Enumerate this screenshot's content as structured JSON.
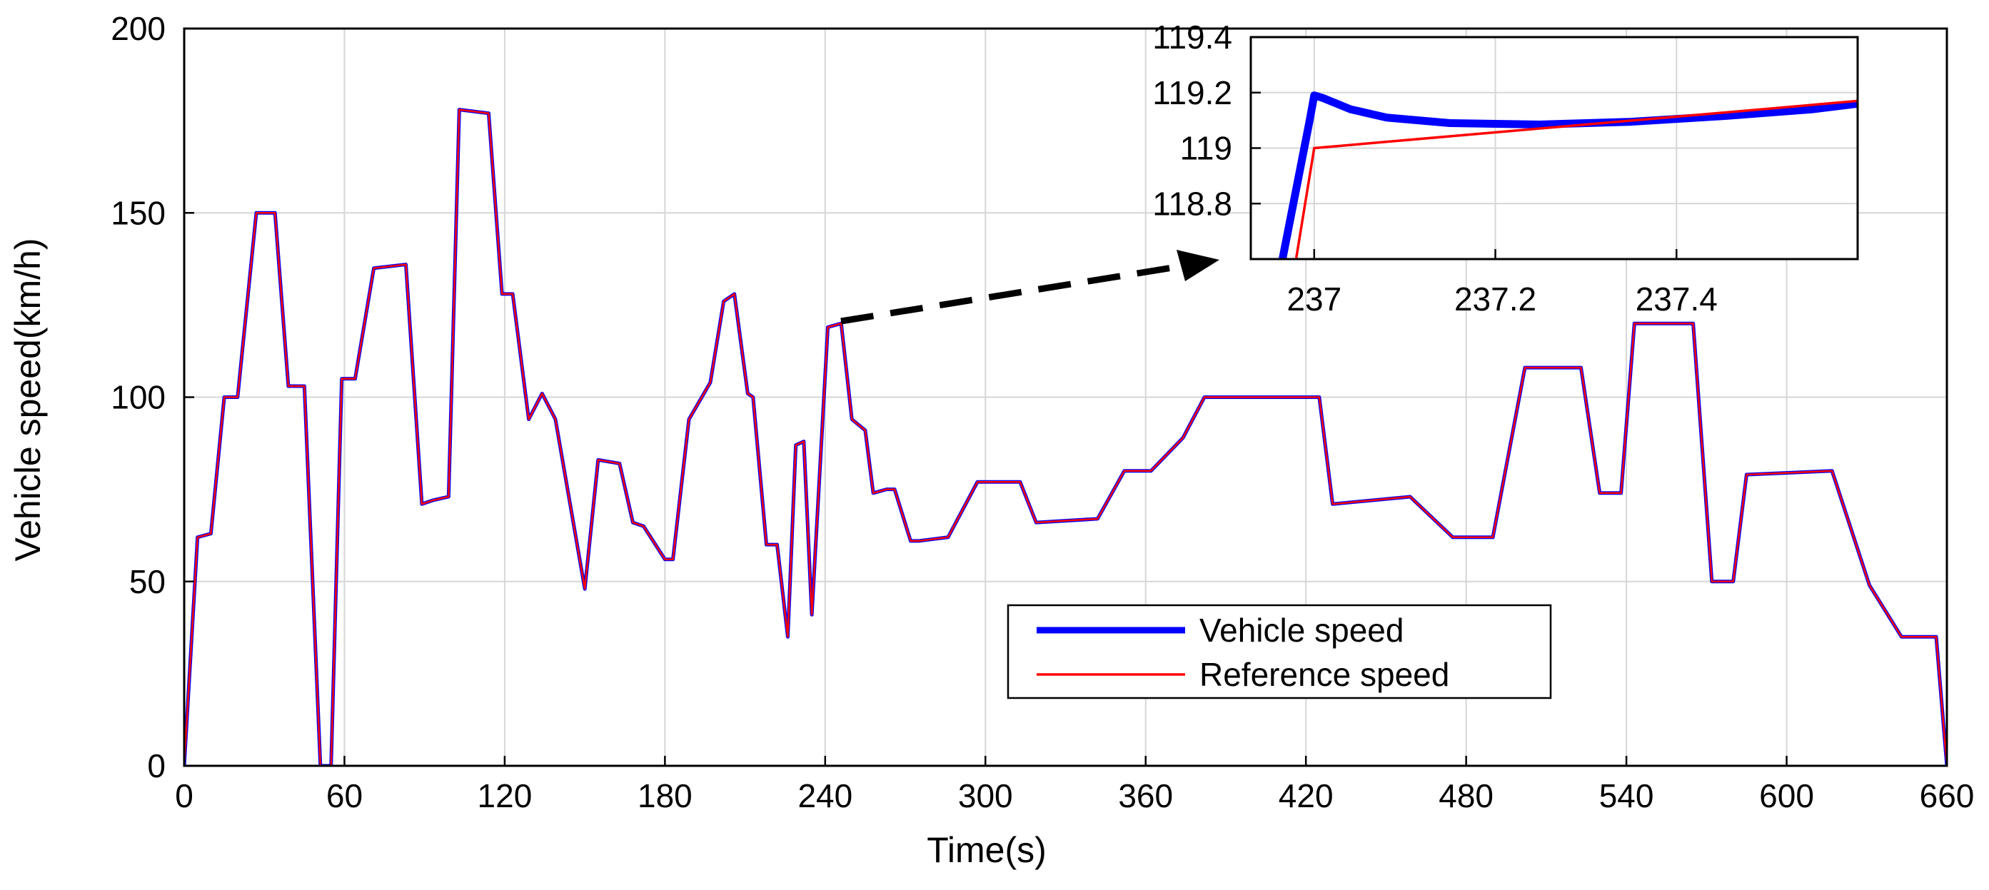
{
  "chart_data": [
    {
      "type": "line",
      "title": "",
      "xlabel": "Time(s)",
      "ylabel": "Vehicle speed(km/h)",
      "xlim": [
        0,
        660
      ],
      "ylim": [
        0,
        200
      ],
      "xticks": [
        0,
        60,
        120,
        180,
        240,
        300,
        360,
        420,
        480,
        540,
        600,
        660
      ],
      "yticks": [
        0,
        50,
        100,
        150,
        200
      ],
      "grid": true,
      "legend_position": "lower-right",
      "series": [
        {
          "name": "Vehicle speed",
          "color": "#0000ff",
          "points": [
            [
              0,
              0
            ],
            [
              5,
              62
            ],
            [
              10,
              63
            ],
            [
              15,
              100
            ],
            [
              20,
              100
            ],
            [
              27,
              150
            ],
            [
              34,
              150
            ],
            [
              39,
              103
            ],
            [
              45,
              103
            ],
            [
              51,
              0
            ],
            [
              55,
              0
            ],
            [
              59,
              105
            ],
            [
              64,
              105
            ],
            [
              71,
              135
            ],
            [
              83,
              136
            ],
            [
              89,
              71
            ],
            [
              93,
              72
            ],
            [
              99,
              73
            ],
            [
              103,
              178
            ],
            [
              114,
              177
            ],
            [
              119,
              128
            ],
            [
              123,
              128
            ],
            [
              129,
              94
            ],
            [
              134,
              101
            ],
            [
              139,
              94
            ],
            [
              150,
              48
            ],
            [
              155,
              83
            ],
            [
              163,
              82
            ],
            [
              168,
              66
            ],
            [
              172,
              65
            ],
            [
              180,
              56
            ],
            [
              183,
              56
            ],
            [
              189,
              94
            ],
            [
              197,
              104
            ],
            [
              202,
              126
            ],
            [
              206,
              128
            ],
            [
              211,
              101
            ],
            [
              213,
              100
            ],
            [
              218,
              60
            ],
            [
              222,
              60
            ],
            [
              226,
              35
            ],
            [
              229,
              87
            ],
            [
              232,
              88
            ],
            [
              235,
              41
            ],
            [
              241,
              119
            ],
            [
              246,
              120
            ],
            [
              250,
              94
            ],
            [
              255,
              91
            ],
            [
              258,
              74
            ],
            [
              263,
              75
            ],
            [
              266,
              75
            ],
            [
              272,
              61
            ],
            [
              275,
              61
            ],
            [
              286,
              62
            ],
            [
              297,
              77
            ],
            [
              313,
              77
            ],
            [
              319,
              66
            ],
            [
              342,
              67
            ],
            [
              352,
              80
            ],
            [
              362,
              80
            ],
            [
              374,
              89
            ],
            [
              382,
              100
            ],
            [
              425,
              100
            ],
            [
              430,
              71
            ],
            [
              459,
              73
            ],
            [
              475,
              62
            ],
            [
              490,
              62
            ],
            [
              502,
              108
            ],
            [
              523,
              108
            ],
            [
              530,
              74
            ],
            [
              538,
              74
            ],
            [
              543,
              120
            ],
            [
              565,
              120
            ],
            [
              572,
              50
            ],
            [
              580,
              50
            ],
            [
              585,
              79
            ],
            [
              617,
              80
            ],
            [
              631,
              49
            ],
            [
              643,
              35
            ],
            [
              656,
              35
            ],
            [
              660,
              0
            ]
          ]
        },
        {
          "name": "Reference speed",
          "color": "#ff0000",
          "points": [
            [
              0,
              0
            ],
            [
              5,
              62
            ],
            [
              10,
              63
            ],
            [
              15,
              100
            ],
            [
              20,
              100
            ],
            [
              27,
              150
            ],
            [
              34,
              150
            ],
            [
              39,
              103
            ],
            [
              45,
              103
            ],
            [
              51,
              0
            ],
            [
              55,
              0
            ],
            [
              59,
              105
            ],
            [
              64,
              105
            ],
            [
              71,
              135
            ],
            [
              83,
              136
            ],
            [
              89,
              71
            ],
            [
              93,
              72
            ],
            [
              99,
              73
            ],
            [
              103,
              178
            ],
            [
              114,
              177
            ],
            [
              119,
              128
            ],
            [
              123,
              128
            ],
            [
              129,
              94
            ],
            [
              134,
              101
            ],
            [
              139,
              94
            ],
            [
              150,
              48
            ],
            [
              155,
              83
            ],
            [
              163,
              82
            ],
            [
              168,
              66
            ],
            [
              172,
              65
            ],
            [
              180,
              56
            ],
            [
              183,
              56
            ],
            [
              189,
              94
            ],
            [
              197,
              104
            ],
            [
              202,
              126
            ],
            [
              206,
              128
            ],
            [
              211,
              101
            ],
            [
              213,
              100
            ],
            [
              218,
              60
            ],
            [
              222,
              60
            ],
            [
              226,
              35
            ],
            [
              229,
              87
            ],
            [
              232,
              88
            ],
            [
              235,
              41
            ],
            [
              241,
              119
            ],
            [
              246,
              120
            ],
            [
              250,
              94
            ],
            [
              255,
              91
            ],
            [
              258,
              74
            ],
            [
              263,
              75
            ],
            [
              266,
              75
            ],
            [
              272,
              61
            ],
            [
              275,
              61
            ],
            [
              286,
              62
            ],
            [
              297,
              77
            ],
            [
              313,
              77
            ],
            [
              319,
              66
            ],
            [
              342,
              67
            ],
            [
              352,
              80
            ],
            [
              362,
              80
            ],
            [
              374,
              89
            ],
            [
              382,
              100
            ],
            [
              425,
              100
            ],
            [
              430,
              71
            ],
            [
              459,
              73
            ],
            [
              475,
              62
            ],
            [
              490,
              62
            ],
            [
              502,
              108
            ],
            [
              523,
              108
            ],
            [
              530,
              74
            ],
            [
              538,
              74
            ],
            [
              543,
              120
            ],
            [
              565,
              120
            ],
            [
              572,
              50
            ],
            [
              580,
              50
            ],
            [
              585,
              79
            ],
            [
              617,
              80
            ],
            [
              631,
              49
            ],
            [
              643,
              35
            ],
            [
              656,
              35
            ],
            [
              660,
              0
            ]
          ]
        }
      ]
    },
    {
      "type": "line",
      "title": "",
      "xlabel": "",
      "ylabel": "",
      "xlim": [
        236.93,
        237.6
      ],
      "ylim": [
        118.6,
        119.4
      ],
      "xticks": [
        237,
        237.2,
        237.4
      ],
      "xtick_labels": [
        "237",
        "237.2",
        "237.4"
      ],
      "yticks": [
        118.8,
        119,
        119.2,
        119.4
      ],
      "ytick_labels": [
        "118.8",
        "119",
        "119.2",
        "119.4"
      ],
      "grid": true,
      "series": [
        {
          "name": "Vehicle speed",
          "color": "#0000ff",
          "points": [
            [
              236.965,
              118.6
            ],
            [
              236.98,
              118.85
            ],
            [
              236.995,
              119.1
            ],
            [
              237.0,
              119.19
            ],
            [
              237.01,
              119.18
            ],
            [
              237.04,
              119.14
            ],
            [
              237.08,
              119.11
            ],
            [
              237.15,
              119.09
            ],
            [
              237.25,
              119.085
            ],
            [
              237.35,
              119.095
            ],
            [
              237.45,
              119.115
            ],
            [
              237.55,
              119.14
            ],
            [
              237.6,
              119.16
            ]
          ]
        },
        {
          "name": "Reference speed",
          "color": "#ff0000",
          "points": [
            [
              236.98,
              118.6
            ],
            [
              237.0,
              119.0
            ],
            [
              237.6,
              119.17
            ]
          ]
        }
      ]
    }
  ],
  "legend": {
    "items": [
      {
        "label": "Vehicle speed",
        "color": "#0000ff"
      },
      {
        "label": "Reference speed",
        "color": "#ff0000"
      }
    ]
  }
}
